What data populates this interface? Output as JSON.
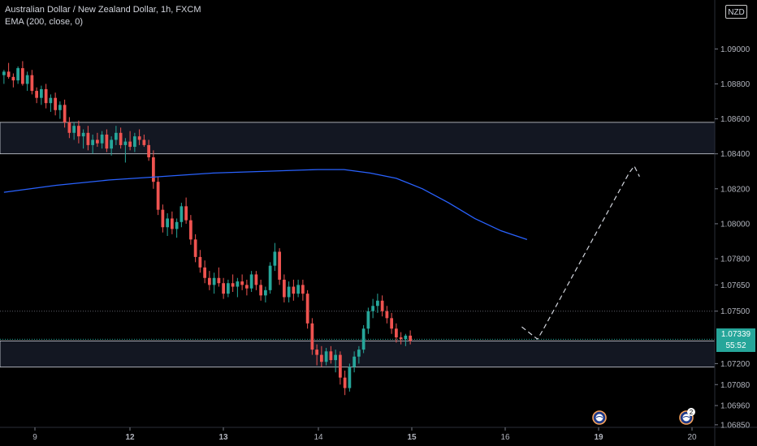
{
  "header": {
    "symbol_line": "Australian Dollar / New Zealand Dollar, 1h, FXCM",
    "indicator_line": "EMA (200, close, 0)",
    "currency": "NZD"
  },
  "price_axis": {
    "ticks": [
      "1.09000",
      "1.08800",
      "1.08600",
      "1.08400",
      "1.08200",
      "1.08000",
      "1.07800",
      "1.07650",
      "1.07500",
      "1.07200",
      "1.07080",
      "1.06960",
      "1.06850"
    ],
    "current_price": "1.07339",
    "countdown": "55:52"
  },
  "time_axis": {
    "labels": [
      "9",
      "12",
      "13",
      "14",
      "15",
      "16",
      "19",
      "20"
    ]
  },
  "events": [
    {
      "icon": "earth-globe-icon",
      "count": ""
    },
    {
      "icon": "earth-globe-icon",
      "count": "2"
    }
  ],
  "colors": {
    "up": "#26a69a",
    "down": "#ef5350",
    "ema": "#2962ff",
    "zone_fill": "#131722",
    "zone_border": "#d1d4dc"
  },
  "chart_data": {
    "type": "candlestick",
    "timeframe": "1h",
    "symbol": "AUD/NZD",
    "ylim": [
      1.0684,
      1.0915
    ],
    "zones": [
      [
        1.084,
        1.0858
      ],
      [
        1.0718,
        1.0733
      ]
    ],
    "key_levels": [
      1.075
    ],
    "ema200": [
      [
        0,
        1.0818
      ],
      [
        2,
        1.0822
      ],
      [
        4,
        1.0825
      ],
      [
        6,
        1.0827
      ],
      [
        8,
        1.0829
      ],
      [
        10,
        1.083
      ],
      [
        12,
        1.0831
      ],
      [
        13,
        1.0831
      ],
      [
        14,
        1.0829
      ],
      [
        15,
        1.0826
      ],
      [
        16,
        1.082
      ],
      [
        17,
        1.0812
      ],
      [
        18,
        1.0803
      ],
      [
        19,
        1.0796
      ],
      [
        20,
        1.0791
      ]
    ],
    "projection": [
      [
        19.8,
        1.0741
      ],
      [
        20.4,
        1.0734
      ],
      [
        20.6,
        1.0739
      ],
      [
        23.9,
        1.0829
      ],
      [
        24.1,
        1.0833
      ],
      [
        24.3,
        1.0827
      ]
    ],
    "ohlc": [
      [
        1.0885,
        1.0888,
        1.088,
        1.0887
      ],
      [
        1.0887,
        1.0892,
        1.0883,
        1.0884
      ],
      [
        1.0884,
        1.0886,
        1.0878,
        1.0882
      ],
      [
        1.0882,
        1.089,
        1.088,
        1.0889
      ],
      [
        1.0889,
        1.0893,
        1.0879,
        1.088
      ],
      [
        1.088,
        1.0887,
        1.0876,
        1.0885
      ],
      [
        1.0885,
        1.0888,
        1.0874,
        1.0876
      ],
      [
        1.0876,
        1.0878,
        1.0869,
        1.0872
      ],
      [
        1.0872,
        1.0879,
        1.0868,
        1.0877
      ],
      [
        1.0877,
        1.088,
        1.0866,
        1.0869
      ],
      [
        1.0869,
        1.0874,
        1.0864,
        1.0872
      ],
      [
        1.0872,
        1.0875,
        1.0862,
        1.0865
      ],
      [
        1.0865,
        1.087,
        1.086,
        1.0868
      ],
      [
        1.0868,
        1.0871,
        1.0855,
        1.0858
      ],
      [
        1.0858,
        1.0861,
        1.0849,
        1.0852
      ],
      [
        1.0852,
        1.0858,
        1.0848,
        1.0856
      ],
      [
        1.0856,
        1.0859,
        1.0846,
        1.085
      ],
      [
        1.085,
        1.0854,
        1.0843,
        1.0852
      ],
      [
        1.0852,
        1.0856,
        1.0842,
        1.0845
      ],
      [
        1.0845,
        1.0851,
        1.084,
        1.0848
      ],
      [
        1.0848,
        1.0852,
        1.0844,
        1.0846
      ],
      [
        1.0846,
        1.0853,
        1.0843,
        1.0851
      ],
      [
        1.0851,
        1.0854,
        1.0841,
        1.0843
      ],
      [
        1.0843,
        1.085,
        1.0839,
        1.0848
      ],
      [
        1.0848,
        1.0856,
        1.0845,
        1.0852
      ],
      [
        1.0852,
        1.0855,
        1.0843,
        1.0845
      ],
      [
        1.0845,
        1.0849,
        1.0835,
        1.0847
      ],
      [
        1.0847,
        1.0853,
        1.0842,
        1.0844
      ],
      [
        1.0844,
        1.0852,
        1.0841,
        1.085
      ],
      [
        1.085,
        1.0854,
        1.0845,
        1.0848
      ],
      [
        1.0848,
        1.0851,
        1.0844,
        1.0845
      ],
      [
        1.0845,
        1.0848,
        1.0836,
        1.0838
      ],
      [
        1.0838,
        1.0842,
        1.082,
        1.0824
      ],
      [
        1.0824,
        1.0827,
        1.0805,
        1.0808
      ],
      [
        1.0808,
        1.0811,
        1.0795,
        1.0798
      ],
      [
        1.0798,
        1.0806,
        1.0793,
        1.0803
      ],
      [
        1.0803,
        1.0807,
        1.0794,
        1.0797
      ],
      [
        1.0797,
        1.0803,
        1.0792,
        1.0801
      ],
      [
        1.0801,
        1.0812,
        1.0798,
        1.081
      ],
      [
        1.081,
        1.0815,
        1.08,
        1.0802
      ],
      [
        1.0802,
        1.0805,
        1.0788,
        1.0791
      ],
      [
        1.0791,
        1.0794,
        1.0778,
        1.0781
      ],
      [
        1.0781,
        1.0785,
        1.0772,
        1.0775
      ],
      [
        1.0775,
        1.0779,
        1.0766,
        1.0769
      ],
      [
        1.0769,
        1.0773,
        1.0762,
        1.0765
      ],
      [
        1.0765,
        1.0772,
        1.076,
        1.0769
      ],
      [
        1.0769,
        1.0775,
        1.0764,
        1.0766
      ],
      [
        1.0766,
        1.0769,
        1.0757,
        1.076
      ],
      [
        1.076,
        1.0768,
        1.0758,
        1.0766
      ],
      [
        1.0766,
        1.0771,
        1.0761,
        1.0764
      ],
      [
        1.0764,
        1.0769,
        1.0758,
        1.0767
      ],
      [
        1.0767,
        1.0771,
        1.0762,
        1.0765
      ],
      [
        1.0765,
        1.0768,
        1.0759,
        1.0763
      ],
      [
        1.0763,
        1.0773,
        1.0761,
        1.0771
      ],
      [
        1.0771,
        1.0773,
        1.0762,
        1.0765
      ],
      [
        1.0765,
        1.0768,
        1.0756,
        1.0759
      ],
      [
        1.0759,
        1.0764,
        1.0755,
        1.0762
      ],
      [
        1.0762,
        1.0778,
        1.076,
        1.0776
      ],
      [
        1.0776,
        1.0789,
        1.0773,
        1.0784
      ],
      [
        1.0784,
        1.0786,
        1.0765,
        1.0768
      ],
      [
        1.0768,
        1.0771,
        1.0755,
        1.0758
      ],
      [
        1.0758,
        1.0767,
        1.0755,
        1.0764
      ],
      [
        1.0764,
        1.0768,
        1.0756,
        1.076
      ],
      [
        1.076,
        1.0768,
        1.0758,
        1.0765
      ],
      [
        1.0765,
        1.0768,
        1.0756,
        1.076
      ],
      [
        1.076,
        1.0762,
        1.074,
        1.0743
      ],
      [
        1.0743,
        1.0746,
        1.0725,
        1.0728
      ],
      [
        1.0728,
        1.0731,
        1.0719,
        1.0725
      ],
      [
        1.0725,
        1.073,
        1.0718,
        1.0721
      ],
      [
        1.0721,
        1.0729,
        1.0719,
        1.0727
      ],
      [
        1.0727,
        1.073,
        1.072,
        1.0722
      ],
      [
        1.0722,
        1.0728,
        1.0715,
        1.0725
      ],
      [
        1.0725,
        1.0727,
        1.0708,
        1.0712
      ],
      [
        1.0712,
        1.0716,
        1.0702,
        1.0706
      ],
      [
        1.0706,
        1.072,
        1.0704,
        1.0718
      ],
      [
        1.0718,
        1.0727,
        1.0715,
        1.0724
      ],
      [
        1.0724,
        1.073,
        1.072,
        1.0728
      ],
      [
        1.0728,
        1.0742,
        1.0726,
        1.074
      ],
      [
        1.074,
        1.0752,
        1.0737,
        1.075
      ],
      [
        1.075,
        1.0757,
        1.0746,
        1.0753
      ],
      [
        1.0753,
        1.076,
        1.0749,
        1.0756
      ],
      [
        1.0756,
        1.0759,
        1.0747,
        1.075
      ],
      [
        1.075,
        1.0753,
        1.0743,
        1.0746
      ],
      [
        1.0746,
        1.0749,
        1.0737,
        1.074
      ],
      [
        1.074,
        1.0743,
        1.0732,
        1.0735
      ],
      [
        1.0735,
        1.0738,
        1.0731,
        1.0734
      ],
      [
        1.0734,
        1.0737,
        1.073,
        1.0736
      ],
      [
        1.0736,
        1.0739,
        1.0731,
        1.0733
      ]
    ]
  }
}
